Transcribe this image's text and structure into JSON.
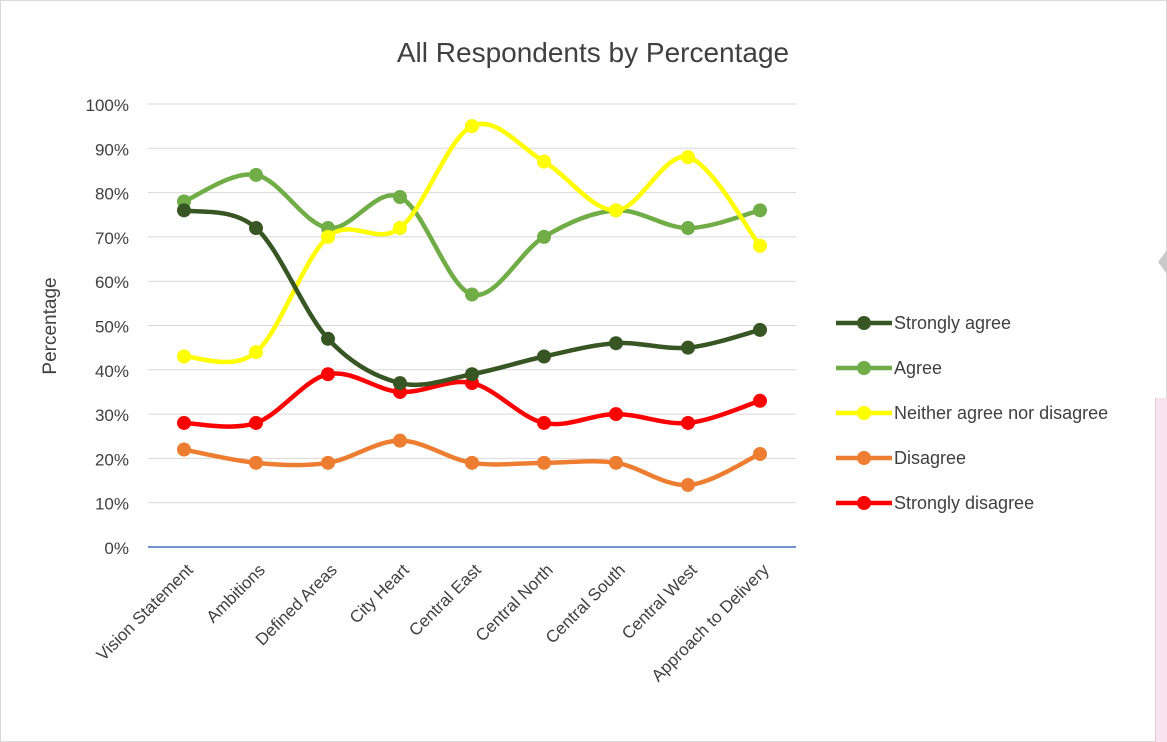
{
  "chart_data": {
    "type": "line",
    "title": "All Respondents by Percentage",
    "ylabel": "Percentage",
    "xlabel": "",
    "ylim": [
      0,
      100
    ],
    "yticks": [
      "0%",
      "10%",
      "20%",
      "30%",
      "40%",
      "50%",
      "60%",
      "70%",
      "80%",
      "90%",
      "100%"
    ],
    "categories": [
      "Vision Statement",
      "Ambitions",
      "Defined Areas",
      "City Heart",
      "Central East",
      "Central North",
      "Central South",
      "Central West",
      "Approach to Delivery"
    ],
    "smooth": true,
    "grid": true,
    "legend_position": "right",
    "series": [
      {
        "name": "Strongly agree",
        "color": "#375623",
        "values": [
          76,
          72,
          47,
          37,
          39,
          43,
          46,
          45,
          49
        ]
      },
      {
        "name": "Agree",
        "color": "#70ad47",
        "values": [
          78,
          84,
          72,
          79,
          57,
          70,
          76,
          72,
          76
        ]
      },
      {
        "name": "Neither agree nor disagree",
        "color": "#ffff00",
        "values": [
          43,
          44,
          70,
          72,
          95,
          87,
          76,
          88,
          68
        ]
      },
      {
        "name": "Disagree",
        "color": "#ed7d31",
        "values": [
          22,
          19,
          19,
          24,
          19,
          19,
          19,
          14,
          21
        ]
      },
      {
        "name": "Strongly disagree",
        "color": "#ff0000",
        "values": [
          28,
          28,
          39,
          35,
          37,
          28,
          30,
          28,
          33
        ]
      }
    ]
  }
}
